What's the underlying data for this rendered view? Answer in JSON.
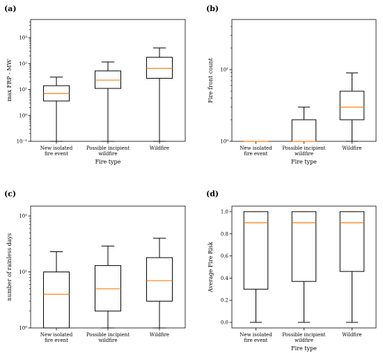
{
  "panel_labels": [
    "(a)",
    "(b)",
    "(c)",
    "(d)"
  ],
  "colors": {
    "median": "#ff7f0e",
    "box": "#000000",
    "background": "#ffffff"
  },
  "chart_data": [
    {
      "type": "box",
      "panel": "(a)",
      "xlabel": "Fire type",
      "ylabel": "max FRP - MW",
      "yscale": "log",
      "ylim": [
        0.1,
        5000
      ],
      "yticks": [
        0.1,
        1,
        10,
        100,
        1000
      ],
      "ytick_labels": [
        "10⁻¹",
        "10⁰",
        "10¹",
        "10²",
        "10³"
      ],
      "categories": [
        "New isolated\nfire event",
        "Possible incipient\nwildfire",
        "Wildfire"
      ],
      "boxes": [
        {
          "whislo": 0.1,
          "q1": 3.6,
          "med": 7,
          "q3": 14,
          "whishi": 30
        },
        {
          "whislo": 0.1,
          "q1": 11,
          "med": 23,
          "q3": 52,
          "whishi": 115
        },
        {
          "whislo": 0.1,
          "q1": 27,
          "med": 65,
          "q3": 175,
          "whishi": 400
        }
      ]
    },
    {
      "type": "box",
      "panel": "(b)",
      "xlabel": "Fire type",
      "ylabel": "Fire front count",
      "yscale": "log",
      "ylim": [
        1,
        50
      ],
      "yticks": [
        1,
        10
      ],
      "ytick_labels": [
        "10⁰",
        "10¹"
      ],
      "categories": [
        "New isolated\nfire event",
        "Possible incipient\nwildfire",
        "Wildfire"
      ],
      "boxes": [
        {
          "whislo": 1,
          "q1": 1,
          "med": 1,
          "q3": 1,
          "whishi": 1
        },
        {
          "whislo": 1,
          "q1": 1,
          "med": 1,
          "q3": 2,
          "whishi": 3
        },
        {
          "whislo": 1,
          "q1": 2,
          "med": 3,
          "q3": 5,
          "whishi": 9
        }
      ]
    },
    {
      "type": "box",
      "panel": "(c)",
      "xlabel": "",
      "ylabel": "number of rainless days",
      "yscale": "log",
      "ylim": [
        1,
        150
      ],
      "yticks": [
        1,
        10,
        100
      ],
      "ytick_labels": [
        "10⁰",
        "10¹",
        "10²"
      ],
      "categories": [
        "New isolated\nfire event",
        "Possible incipient\nwildfire",
        "Wildfire"
      ],
      "boxes": [
        {
          "whislo": 1,
          "q1": 1,
          "med": 4,
          "q3": 10,
          "whishi": 23
        },
        {
          "whislo": 1,
          "q1": 2,
          "med": 5,
          "q3": 13,
          "whishi": 29
        },
        {
          "whislo": 1,
          "q1": 3,
          "med": 7,
          "q3": 18,
          "whishi": 40
        }
      ]
    },
    {
      "type": "box",
      "panel": "(d)",
      "xlabel": "Fire type",
      "ylabel": "Average Fire Risk",
      "yscale": "linear",
      "ylim": [
        -0.05,
        1.05
      ],
      "yticks": [
        0.0,
        0.2,
        0.4,
        0.6,
        0.8,
        1.0
      ],
      "ytick_labels": [
        "0.0",
        "0.2",
        "0.4",
        "0.6",
        "0.8",
        "1.0"
      ],
      "categories": [
        "New isolated\nfire event",
        "Possible incipient\nwildfire",
        "Wildfire"
      ],
      "boxes": [
        {
          "whislo": 0.0,
          "q1": 0.3,
          "med": 0.9,
          "q3": 1.0,
          "whishi": 1.0
        },
        {
          "whislo": 0.0,
          "q1": 0.37,
          "med": 0.9,
          "q3": 1.0,
          "whishi": 1.0
        },
        {
          "whislo": 0.0,
          "q1": 0.46,
          "med": 0.9,
          "q3": 1.0,
          "whishi": 1.0
        }
      ]
    }
  ]
}
